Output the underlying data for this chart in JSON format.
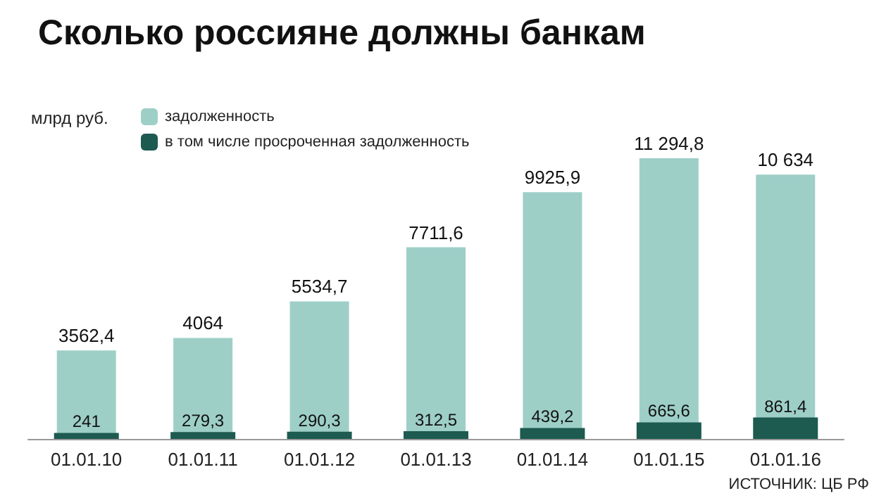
{
  "chart_data": {
    "type": "bar",
    "title": "Сколько россияне должны банкам",
    "ylabel": "млрд руб.",
    "categories": [
      "01.01.10",
      "01.01.11",
      "01.01.12",
      "01.01.13",
      "01.01.14",
      "01.01.15",
      "01.01.16"
    ],
    "series": [
      {
        "name": "задолженность",
        "color": "#9dcfc7",
        "values": [
          3562.4,
          4064,
          5534.7,
          7711.6,
          9925.9,
          11294.8,
          10634
        ],
        "value_labels": [
          "3562,4",
          "4064",
          "5534,7",
          "7711,6",
          "9925,9",
          "11 294,8",
          "10 634"
        ]
      },
      {
        "name": "в том числе просроченная задолженность",
        "color": "#1d5a50",
        "values": [
          241,
          279.3,
          290.3,
          312.5,
          439.2,
          665.6,
          861.4
        ],
        "value_labels": [
          "241",
          "279,3",
          "290,3",
          "312,5",
          "439,2",
          "665,6",
          "861,4"
        ]
      }
    ],
    "annotations": [
      "ИСТОЧНИК: ЦБ РФ"
    ],
    "legend": "top left"
  }
}
